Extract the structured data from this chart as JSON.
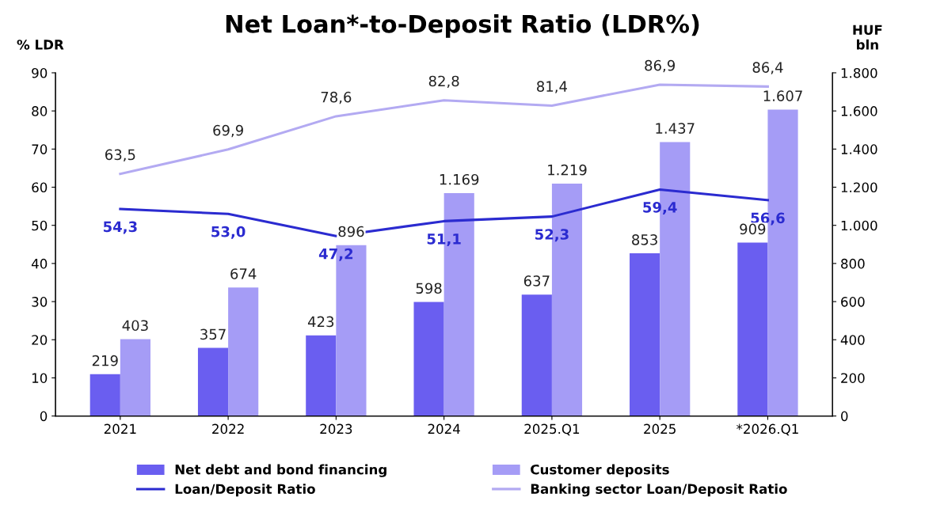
{
  "chart_data": {
    "type": "bar",
    "title": "Net Loan*-to-Deposit Ratio (LDR%)",
    "ylabel": "% LDR",
    "y2label": "HUF\nbln",
    "categories": [
      "2021",
      "2022",
      "2023",
      "2024",
      "2025.Q1",
      "2025",
      "*2026.Q1"
    ],
    "series": [
      {
        "name": "Net debt and bond financing",
        "axis": "y2",
        "color": "#6a5ef0",
        "values": [
          219,
          357,
          423,
          598,
          637,
          853,
          909
        ],
        "value_labels": [
          "219",
          "357",
          "423",
          "598",
          "637",
          "853",
          "909"
        ]
      },
      {
        "name": "Customer deposits",
        "axis": "y2",
        "color": "#a59cf6",
        "values": [
          403,
          674,
          896,
          1169,
          1219,
          1437,
          1607
        ],
        "value_labels": [
          "403",
          "674",
          "896",
          "1.169",
          "1.219",
          "1.437",
          "1.607"
        ]
      },
      {
        "name": "Loan/Deposit Ratio",
        "type": "line",
        "axis": "y",
        "color": "#2b2bd0",
        "values": [
          54.3,
          53.0,
          47.2,
          51.1,
          52.3,
          59.4,
          56.6
        ],
        "value_labels": [
          "54,3",
          "53,0",
          "47,2",
          "51,1",
          "52,3",
          "59,4",
          "56,6"
        ]
      },
      {
        "name": "Banking sector Loan/Deposit Ratio",
        "type": "line",
        "axis": "y",
        "color": "#b3aaf2",
        "values": [
          63.5,
          69.9,
          78.6,
          82.8,
          81.4,
          86.9,
          86.4
        ],
        "value_labels": [
          "63,5",
          "69,9",
          "78,6",
          "82,8",
          "81,4",
          "86,9",
          "86,4"
        ]
      }
    ],
    "ylim": [
      0,
      90
    ],
    "yticks": [
      0,
      10,
      20,
      30,
      40,
      50,
      60,
      70,
      80,
      90
    ],
    "y2lim": [
      0,
      1800
    ],
    "y2ticks": [
      0,
      200,
      400,
      600,
      800,
      {
        "value": 1000,
        "label": "1.000"
      },
      {
        "value": 1200,
        "label": "1.200"
      },
      {
        "value": 1400,
        "label": "1.400"
      },
      {
        "value": 1600,
        "label": "1.600"
      },
      {
        "value": 1800,
        "label": "1.800"
      }
    ],
    "legend": "bottom",
    "grid": false,
    "marker": "none",
    "line_style": "solid"
  }
}
